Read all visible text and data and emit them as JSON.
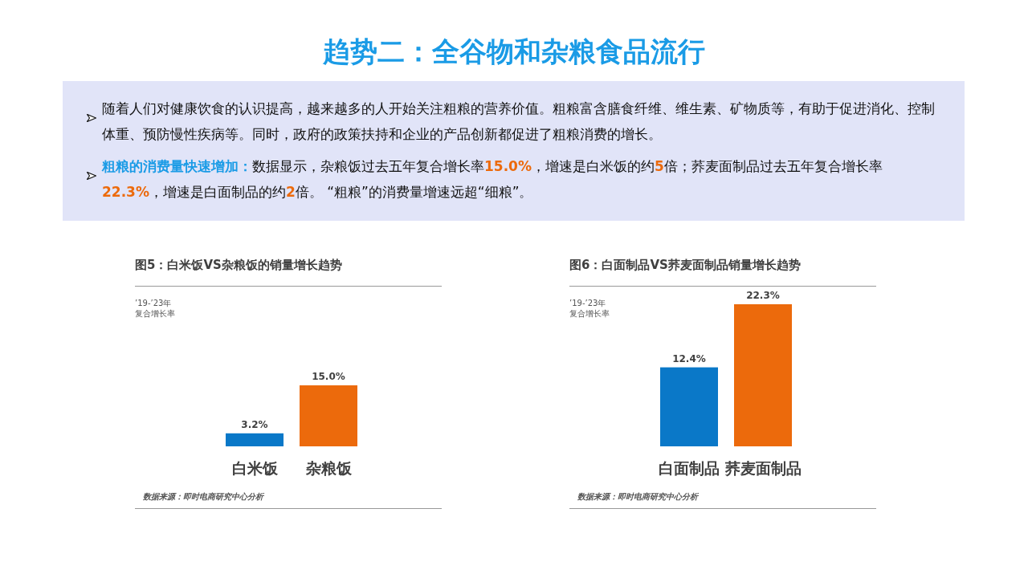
{
  "chart_data": [
    {
      "type": "other",
      "title": "趋势二：全谷物和杂粮食品流行",
      "annotations": [
        "随着人们对健康饮食的认识提高，越来越多的人开始关注粗粮的营养价值。粗粮富含膳食纤维、维生素、矿物质等，有助于促进消化、控制体重、预防慢性疾病等。同时，政府的政策扶持和企业的产品创新都促进了粗粮消费的增长。",
        "**粗粮的消费量快速增加：**数据显示，杂粮饭过去五年复合增长率**15.0%**，增速是白米饭的约**5**倍；荞麦面制品过去五年复合增长率**22.3%**，增速是白面制品的约**2**倍。 “粗粮”的消费量增速远超“细粮”。"
      ]
    },
    {
      "type": "bar",
      "title": "图5：白米饭VS杂粮饭的销量增长趋势",
      "ylabel": "’19-’23年复合增长率",
      "categories": [
        "白米饭",
        "杂粮饭"
      ],
      "values": [
        3.2,
        15.0
      ],
      "colors": [
        "#0a78c8",
        "#ec6a0c"
      ],
      "value_labels": [
        "3.2%",
        "15.0%"
      ],
      "annotations": [
        "数据来源：即时电商研究中心分析"
      ]
    },
    {
      "type": "bar",
      "title": "图6：白面制品VS荞麦面制品销量增长趋势",
      "ylabel": "’19-’23年复合增长率",
      "categories": [
        "白面制品",
        "荞麦面制品"
      ],
      "values": [
        12.4,
        22.3
      ],
      "colors": [
        "#0a78c8",
        "#ec6a0c"
      ],
      "value_labels": [
        "12.4%",
        "22.3%"
      ],
      "annotations": [
        "数据来源：即时电商研究中心分析"
      ]
    }
  ]
}
